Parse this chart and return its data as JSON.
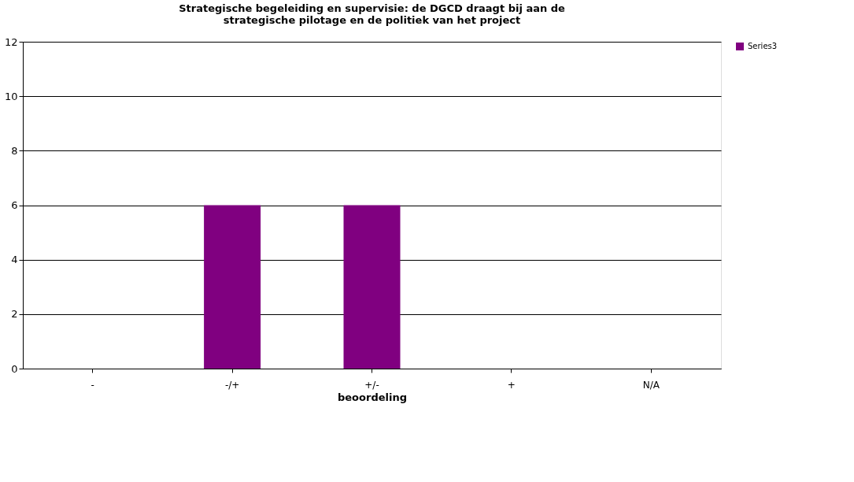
{
  "chart_data": {
    "type": "bar",
    "title": "Strategische begeleiding en supervisie: de DGCD draagt bij aan de strategische pilotage en de politiek van het project",
    "xlabel": "beoordeling",
    "categories": [
      "-",
      "-/+",
      "+/-",
      "+",
      "N/A"
    ],
    "series": [
      {
        "name": "Series3",
        "color": "#800080",
        "values": [
          0,
          6,
          6,
          0,
          0
        ]
      }
    ],
    "ylim": [
      0,
      12
    ],
    "yticks": [
      0,
      2,
      4,
      6,
      8,
      10,
      12
    ],
    "grid": "y",
    "legend": "right"
  }
}
